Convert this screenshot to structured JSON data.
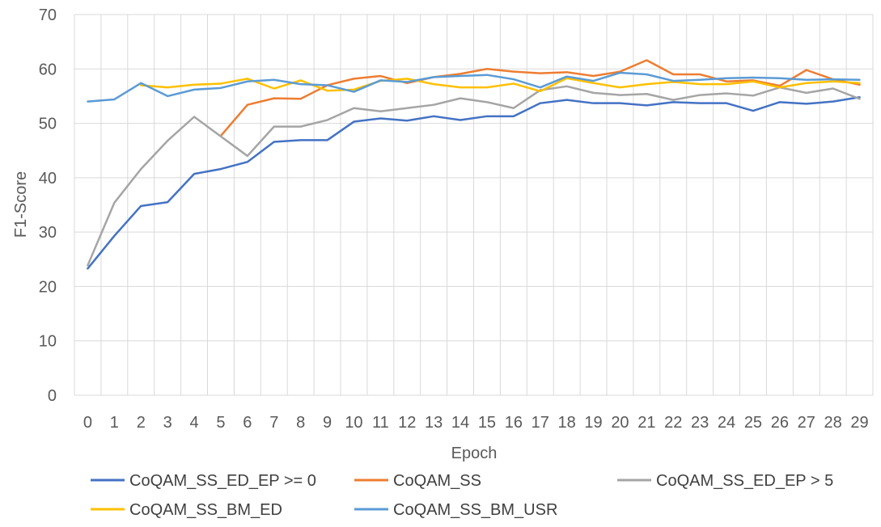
{
  "chart_data": {
    "type": "line",
    "xlabel": "Epoch",
    "ylabel": "F1-Score",
    "ylim": [
      0,
      70
    ],
    "yticks": [
      0,
      10,
      20,
      30,
      40,
      50,
      60,
      70
    ],
    "x": [
      0,
      1,
      2,
      3,
      4,
      5,
      6,
      7,
      8,
      9,
      10,
      11,
      12,
      13,
      14,
      15,
      16,
      17,
      18,
      19,
      20,
      21,
      22,
      23,
      24,
      25,
      26,
      27,
      28,
      29
    ],
    "grid": true,
    "legend_position": "bottom",
    "series": [
      {
        "name": "CoQAM_SS_ED_EP >= 0",
        "color": "#4472c4",
        "values": [
          23.3,
          29.3,
          34.8,
          35.5,
          40.7,
          41.6,
          42.9,
          46.6,
          46.9,
          46.9,
          50.3,
          50.9,
          50.5,
          51.3,
          50.6,
          51.3,
          51.3,
          53.7,
          54.3,
          53.7,
          53.7,
          53.3,
          53.9,
          53.7,
          53.7,
          52.3,
          53.9,
          53.6,
          54.0,
          54.8
        ]
      },
      {
        "name": "CoQAM_SS",
        "color": "#ed7d31",
        "values": [
          null,
          null,
          null,
          null,
          null,
          47.7,
          53.4,
          54.6,
          54.5,
          57.0,
          58.2,
          58.7,
          57.4,
          58.5,
          59.1,
          60.0,
          59.5,
          59.2,
          59.4,
          58.7,
          59.5,
          61.6,
          59.0,
          59.0,
          57.7,
          57.9,
          56.9,
          59.8,
          58.1,
          57.1
        ]
      },
      {
        "name": "CoQAM_SS_ED_EP > 5",
        "color": "#a5a5a5",
        "values": [
          23.9,
          35.4,
          41.6,
          46.8,
          51.2,
          47.6,
          44.0,
          49.4,
          49.4,
          50.6,
          52.8,
          52.2,
          52.8,
          53.4,
          54.6,
          53.9,
          52.8,
          56.1,
          56.8,
          55.6,
          55.2,
          55.4,
          54.3,
          55.2,
          55.5,
          55.1,
          56.6,
          55.6,
          56.4,
          54.5
        ]
      },
      {
        "name": "CoQAM_SS_BM_ED",
        "color": "#ffc000",
        "values": [
          null,
          null,
          57.0,
          56.6,
          57.1,
          57.3,
          58.2,
          56.4,
          57.9,
          56.0,
          56.2,
          57.8,
          58.2,
          57.2,
          56.6,
          56.6,
          57.3,
          55.9,
          58.3,
          57.4,
          56.6,
          57.2,
          57.6,
          57.2,
          57.2,
          57.7,
          56.6,
          57.4,
          57.7,
          57.4
        ]
      },
      {
        "name": "CoQAM_SS_BM_USR",
        "color": "#5b9bd5",
        "values": [
          54.0,
          54.4,
          57.4,
          55.0,
          56.2,
          56.5,
          57.7,
          58.0,
          57.2,
          57.0,
          55.8,
          57.9,
          57.6,
          58.5,
          58.7,
          58.9,
          58.1,
          56.6,
          58.6,
          57.8,
          59.3,
          59.0,
          57.8,
          58.0,
          58.3,
          58.4,
          58.3,
          58.0,
          58.1,
          58.0
        ]
      }
    ]
  }
}
